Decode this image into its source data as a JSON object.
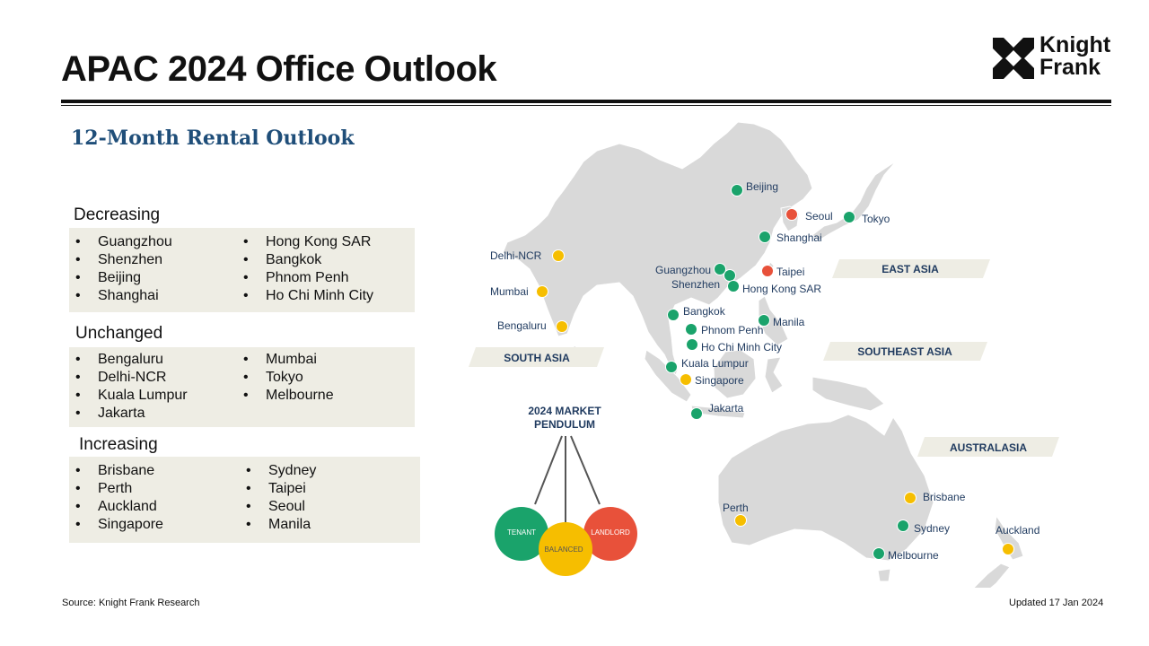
{
  "header": {
    "title": "APAC 2024 Office Outlook",
    "logo_line1": "Knight",
    "logo_line2": "Frank"
  },
  "subtitle": "12-Month Rental Outlook",
  "outlook": {
    "decreasing": {
      "heading": "Decreasing",
      "left": [
        "Guangzhou",
        "Shenzhen",
        "Beijing",
        "Shanghai"
      ],
      "right": [
        "Hong Kong SAR",
        "Bangkok",
        "Phnom Penh",
        "Ho Chi Minh City"
      ]
    },
    "unchanged": {
      "heading": "Unchanged",
      "left": [
        "Bengaluru",
        "Delhi-NCR",
        "Kuala Lumpur",
        "Jakarta"
      ],
      "right": [
        "Mumbai",
        "Tokyo",
        "Melbourne"
      ]
    },
    "increasing": {
      "heading": "Increasing",
      "left": [
        "Brisbane",
        "Perth",
        "Auckland",
        "Singapore"
      ],
      "right": [
        "Sydney",
        "Taipei",
        "Seoul",
        "Manila"
      ]
    }
  },
  "map": {
    "regions": {
      "east_asia": "EAST ASIA",
      "south_asia": "SOUTH ASIA",
      "southeast_asia": "SOUTHEAST ASIA",
      "australasia": "AUSTRALASIA"
    },
    "cities": {
      "beijing": "Beijing",
      "seoul": "Seoul",
      "tokyo": "Tokyo",
      "shanghai": "Shanghai",
      "delhi": "Delhi-NCR",
      "guangzhou": "Guangzhou",
      "shenzhen": "Shenzhen",
      "taipei": "Taipei",
      "hongkong": "Hong Kong SAR",
      "mumbai": "Mumbai",
      "bangkok": "Bangkok",
      "manila": "Manila",
      "bengaluru": "Bengaluru",
      "phnompenh": "Phnom Penh",
      "hcmc": "Ho Chi Minh City",
      "kualalumpur": "Kuala Lumpur",
      "singapore": "Singapore",
      "jakarta": "Jakarta",
      "brisbane": "Brisbane",
      "perth": "Perth",
      "sydney": "Sydney",
      "auckland": "Auckland",
      "melbourne": "Melbourne"
    },
    "colors": {
      "decreasing": "#1aa36b",
      "unchanged": "#f6be00",
      "increasing": "#e8513a",
      "land": "#d9d9d9",
      "region_label_bg": "#eeede4",
      "label_text": "#1f3a5f"
    }
  },
  "pendulum": {
    "title_line1": "2024 MARKET",
    "title_line2": "PENDULUM",
    "tenant": "TENANT",
    "balanced": "BALANCED",
    "landlord": "LANDLORD"
  },
  "footer": {
    "source": "Source: Knight Frank Research",
    "updated": "Updated 17 Jan 2024"
  }
}
